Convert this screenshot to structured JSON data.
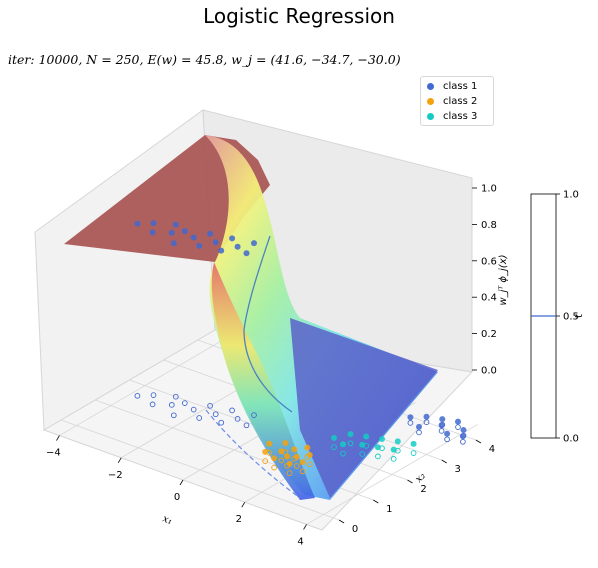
{
  "chart_data": {
    "type": "scatter",
    "title": "Logistic Regression",
    "subtitle": "iter: 10000, N = 250, E(w) = 45.8, w_j = (41.6, −34.7, −30.0)",
    "xlabel": "x₁",
    "ylabel": "x₂",
    "zlabel": "w_jᵀ ϕ_j(x)",
    "xticks": [
      "−4",
      "−2",
      "0",
      "2",
      "4"
    ],
    "yticks": [
      "0",
      "1",
      "2",
      "3",
      "4"
    ],
    "zticks": [
      "0.0",
      "0.2",
      "0.4",
      "0.6",
      "0.8",
      "1.0"
    ],
    "colorbar": {
      "label": "t",
      "ticks": [
        "0.0",
        "0.5",
        "1.0"
      ],
      "level": 0.5
    },
    "legend": {
      "placement": "top-right",
      "entries": [
        {
          "name": "class 1",
          "color": "#4169cf"
        },
        {
          "name": "class 2",
          "color": "#f4a20d"
        },
        {
          "name": "class 3",
          "color": "#12ccc4"
        }
      ]
    },
    "weights": [
      41.6,
      -34.7,
      -30.0
    ],
    "colors": {
      "surface_high": "#a5423f",
      "surface_low": "#3846b8",
      "pane": "#f2f2f2",
      "grid": "#d6d6d6"
    },
    "series": [
      {
        "name": "class 1",
        "points": [
          [
            -3.8,
            1.6
          ],
          [
            -3.5,
            1.8
          ],
          [
            -3.2,
            1.5
          ],
          [
            -3.0,
            2.0
          ],
          [
            -2.8,
            1.7
          ],
          [
            -2.6,
            1.9
          ],
          [
            -2.4,
            1.4
          ],
          [
            -2.2,
            1.8
          ],
          [
            -2.0,
            2.1
          ],
          [
            -1.8,
            1.6
          ],
          [
            -1.6,
            1.9
          ],
          [
            -1.4,
            2.2
          ],
          [
            -1.2,
            1.7
          ],
          [
            -1.0,
            2.0
          ],
          [
            -0.8,
            2.3
          ],
          [
            -0.6,
            1.9
          ],
          [
            2.6,
            3.8
          ],
          [
            2.9,
            4.0
          ],
          [
            3.1,
            3.6
          ],
          [
            3.3,
            4.1
          ],
          [
            3.5,
            3.9
          ],
          [
            3.7,
            4.2
          ],
          [
            3.9,
            3.7
          ],
          [
            4.1,
            4.0
          ],
          [
            4.3,
            3.8
          ]
        ]
      },
      {
        "name": "class 2",
        "points": [
          [
            0.8,
            1.3
          ],
          [
            1.0,
            1.0
          ],
          [
            1.1,
            1.5
          ],
          [
            1.3,
            1.2
          ],
          [
            1.4,
            0.9
          ],
          [
            1.5,
            1.4
          ],
          [
            1.6,
            1.1
          ],
          [
            1.7,
            1.6
          ],
          [
            1.8,
            1.2
          ],
          [
            1.9,
            0.9
          ],
          [
            2.0,
            1.4
          ],
          [
            2.1,
            1.1
          ]
        ]
      },
      {
        "name": "class 3",
        "points": [
          [
            1.9,
            2.2
          ],
          [
            2.1,
            2.5
          ],
          [
            2.3,
            2.1
          ],
          [
            2.5,
            2.6
          ],
          [
            2.7,
            2.3
          ],
          [
            2.9,
            2.7
          ],
          [
            3.1,
            2.4
          ],
          [
            3.3,
            2.8
          ],
          [
            3.5,
            2.5
          ],
          [
            3.7,
            2.9
          ]
        ]
      }
    ]
  }
}
